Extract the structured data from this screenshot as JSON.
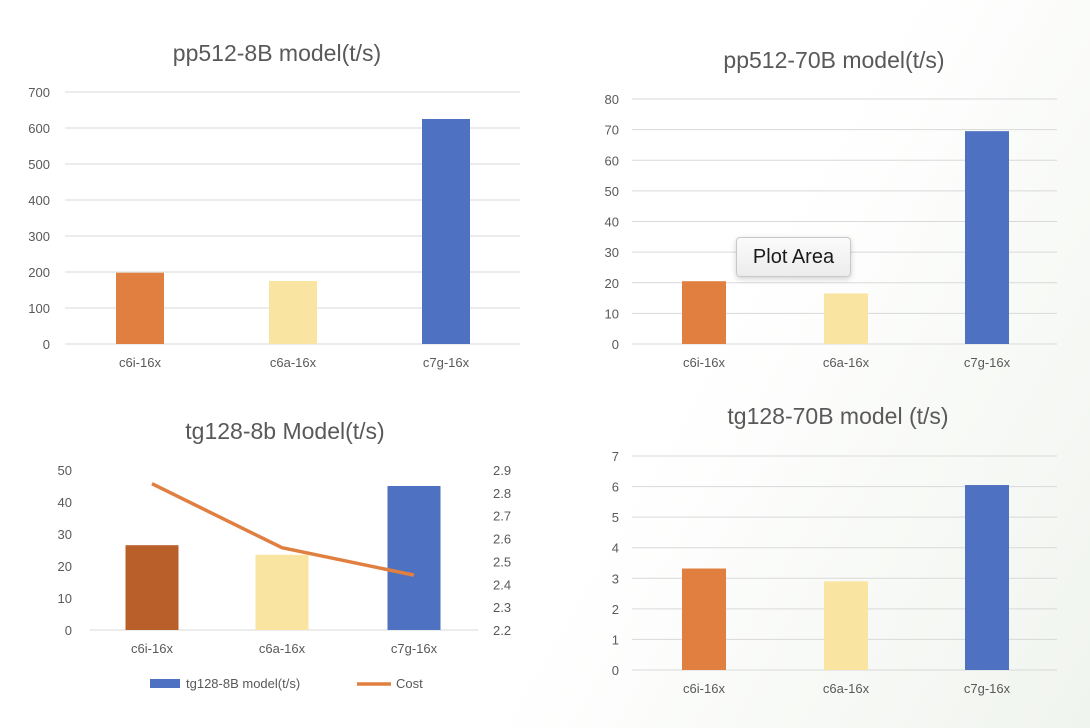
{
  "tooltip": "Plot Area",
  "chart_data": [
    {
      "type": "bar",
      "title": "pp512-8B model(t/s)",
      "categories": [
        "c6i-16x",
        "c6a-16x",
        "c7g-16x"
      ],
      "values": [
        198,
        175,
        625
      ],
      "ylim": [
        0,
        700
      ],
      "yticks": [
        0,
        100,
        200,
        300,
        400,
        500,
        600,
        700
      ],
      "colors": [
        "#E07F3F",
        "#FAE4A1",
        "#4F71C1"
      ],
      "grid": true
    },
    {
      "type": "bar",
      "title": "pp512-70B model(t/s)",
      "categories": [
        "c6i-16x",
        "c6a-16x",
        "c7g-16x"
      ],
      "values": [
        20.5,
        16.5,
        69.5
      ],
      "ylim": [
        0,
        80
      ],
      "yticks": [
        0,
        10,
        20,
        30,
        40,
        50,
        60,
        70,
        80
      ],
      "colors": [
        "#E07F3F",
        "#FAE4A1",
        "#4F71C1"
      ],
      "grid": true
    },
    {
      "type": "bar",
      "title": "tg128-8b Model(t/s)",
      "categories": [
        "c6i-16x",
        "c6a-16x",
        "c7g-16x"
      ],
      "series": [
        {
          "name": "tg128-8B model(t/s)",
          "type": "bar",
          "values": [
            26.5,
            23.5,
            45
          ],
          "axis": "left"
        },
        {
          "name": "Cost",
          "type": "line",
          "values": [
            2.84,
            2.56,
            2.44
          ],
          "axis": "right"
        }
      ],
      "ylim": [
        0,
        50
      ],
      "yticks": [
        0,
        10,
        20,
        30,
        40,
        50
      ],
      "y2lim": [
        2.2,
        2.9
      ],
      "y2ticks": [
        "2.2",
        "2.3",
        "2.4",
        "2.5",
        "2.6",
        "2.7",
        "2.8",
        "2.9"
      ],
      "colors": [
        "#B85F2A",
        "#FAE4A1",
        "#4F71C1"
      ],
      "line_color": "#E07F3F",
      "legend_color": "#4F71C1",
      "legend": "bottom",
      "grid": false
    },
    {
      "type": "bar",
      "title": "tg128-70B model (t/s)",
      "categories": [
        "c6i-16x",
        "c6a-16x",
        "c7g-16x"
      ],
      "values": [
        3.32,
        2.9,
        6.05
      ],
      "ylim": [
        0,
        7
      ],
      "yticks": [
        0,
        1,
        2,
        3,
        4,
        5,
        6,
        7
      ],
      "colors": [
        "#E07F3F",
        "#FAE4A1",
        "#4F71C1"
      ],
      "grid": true
    }
  ]
}
